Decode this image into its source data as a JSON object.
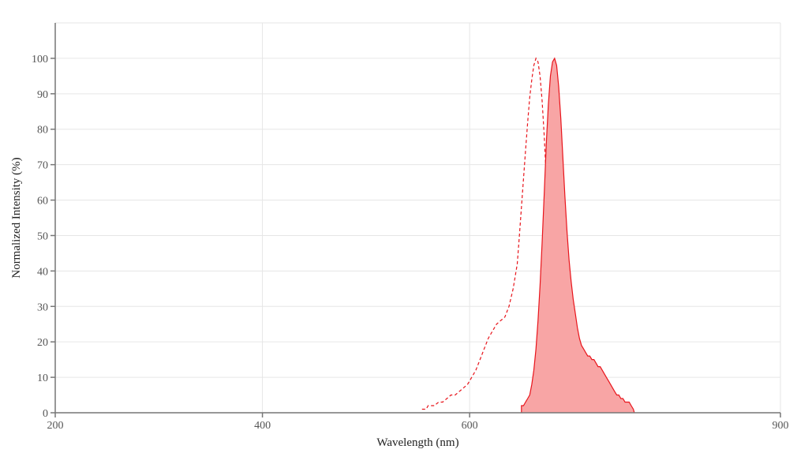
{
  "chart_data": {
    "type": "line",
    "xlabel": "Wavelength (nm)",
    "ylabel": "Normalized Intensity (%)",
    "xlim": [
      200,
      900
    ],
    "ylim": [
      0,
      110
    ],
    "x_ticks": [
      200,
      400,
      600,
      900
    ],
    "y_ticks": [
      0,
      10,
      20,
      30,
      40,
      50,
      60,
      70,
      80,
      90,
      100
    ],
    "grid": true,
    "legend": "none",
    "series": [
      {
        "style": "dashed",
        "color": "#e8141b",
        "fill": false,
        "points": [
          [
            554,
            1
          ],
          [
            558,
            1
          ],
          [
            560,
            2
          ],
          [
            564,
            2
          ],
          [
            566,
            2
          ],
          [
            570,
            3
          ],
          [
            574,
            3
          ],
          [
            578,
            4
          ],
          [
            582,
            5
          ],
          [
            586,
            5
          ],
          [
            590,
            6
          ],
          [
            594,
            7
          ],
          [
            598,
            8
          ],
          [
            602,
            10
          ],
          [
            606,
            12
          ],
          [
            610,
            15
          ],
          [
            614,
            18
          ],
          [
            618,
            21
          ],
          [
            622,
            23
          ],
          [
            626,
            25
          ],
          [
            630,
            26
          ],
          [
            634,
            27
          ],
          [
            638,
            30
          ],
          [
            642,
            35
          ],
          [
            646,
            42
          ],
          [
            648,
            50
          ],
          [
            650,
            58
          ],
          [
            652,
            66
          ],
          [
            654,
            74
          ],
          [
            656,
            82
          ],
          [
            658,
            89
          ],
          [
            660,
            94
          ],
          [
            662,
            98
          ],
          [
            664,
            100
          ],
          [
            666,
            99
          ],
          [
            668,
            95
          ],
          [
            670,
            88
          ],
          [
            672,
            78
          ],
          [
            674,
            66
          ],
          [
            676,
            55
          ],
          [
            678,
            44
          ],
          [
            680,
            35
          ],
          [
            682,
            27
          ],
          [
            684,
            21
          ],
          [
            686,
            16
          ],
          [
            688,
            12
          ],
          [
            690,
            8
          ],
          [
            692,
            6
          ],
          [
            694,
            4
          ],
          [
            696,
            3
          ],
          [
            698,
            2
          ],
          [
            700,
            1
          ],
          [
            702,
            0
          ]
        ]
      },
      {
        "style": "solid",
        "color": "#e8141b",
        "fill": true,
        "fill_color": "#f8a5a5",
        "points": [
          [
            650,
            0
          ],
          [
            650,
            2
          ],
          [
            652,
            2
          ],
          [
            654,
            3
          ],
          [
            656,
            4
          ],
          [
            658,
            5
          ],
          [
            660,
            8
          ],
          [
            662,
            12
          ],
          [
            664,
            18
          ],
          [
            666,
            26
          ],
          [
            668,
            36
          ],
          [
            670,
            48
          ],
          [
            672,
            62
          ],
          [
            674,
            76
          ],
          [
            676,
            87
          ],
          [
            678,
            95
          ],
          [
            680,
            99
          ],
          [
            682,
            100
          ],
          [
            684,
            98
          ],
          [
            686,
            92
          ],
          [
            688,
            83
          ],
          [
            690,
            72
          ],
          [
            692,
            61
          ],
          [
            694,
            51
          ],
          [
            696,
            43
          ],
          [
            698,
            37
          ],
          [
            700,
            32
          ],
          [
            702,
            28
          ],
          [
            704,
            24
          ],
          [
            706,
            21
          ],
          [
            708,
            19
          ],
          [
            710,
            18
          ],
          [
            712,
            17
          ],
          [
            714,
            16
          ],
          [
            716,
            16
          ],
          [
            718,
            15
          ],
          [
            720,
            15
          ],
          [
            722,
            14
          ],
          [
            724,
            13
          ],
          [
            726,
            13
          ],
          [
            728,
            12
          ],
          [
            730,
            11
          ],
          [
            732,
            10
          ],
          [
            734,
            9
          ],
          [
            736,
            8
          ],
          [
            738,
            7
          ],
          [
            740,
            6
          ],
          [
            742,
            5
          ],
          [
            744,
            5
          ],
          [
            746,
            4
          ],
          [
            748,
            4
          ],
          [
            750,
            3
          ],
          [
            752,
            3
          ],
          [
            754,
            3
          ],
          [
            756,
            2
          ],
          [
            758,
            1
          ],
          [
            759,
            0
          ]
        ]
      }
    ]
  }
}
